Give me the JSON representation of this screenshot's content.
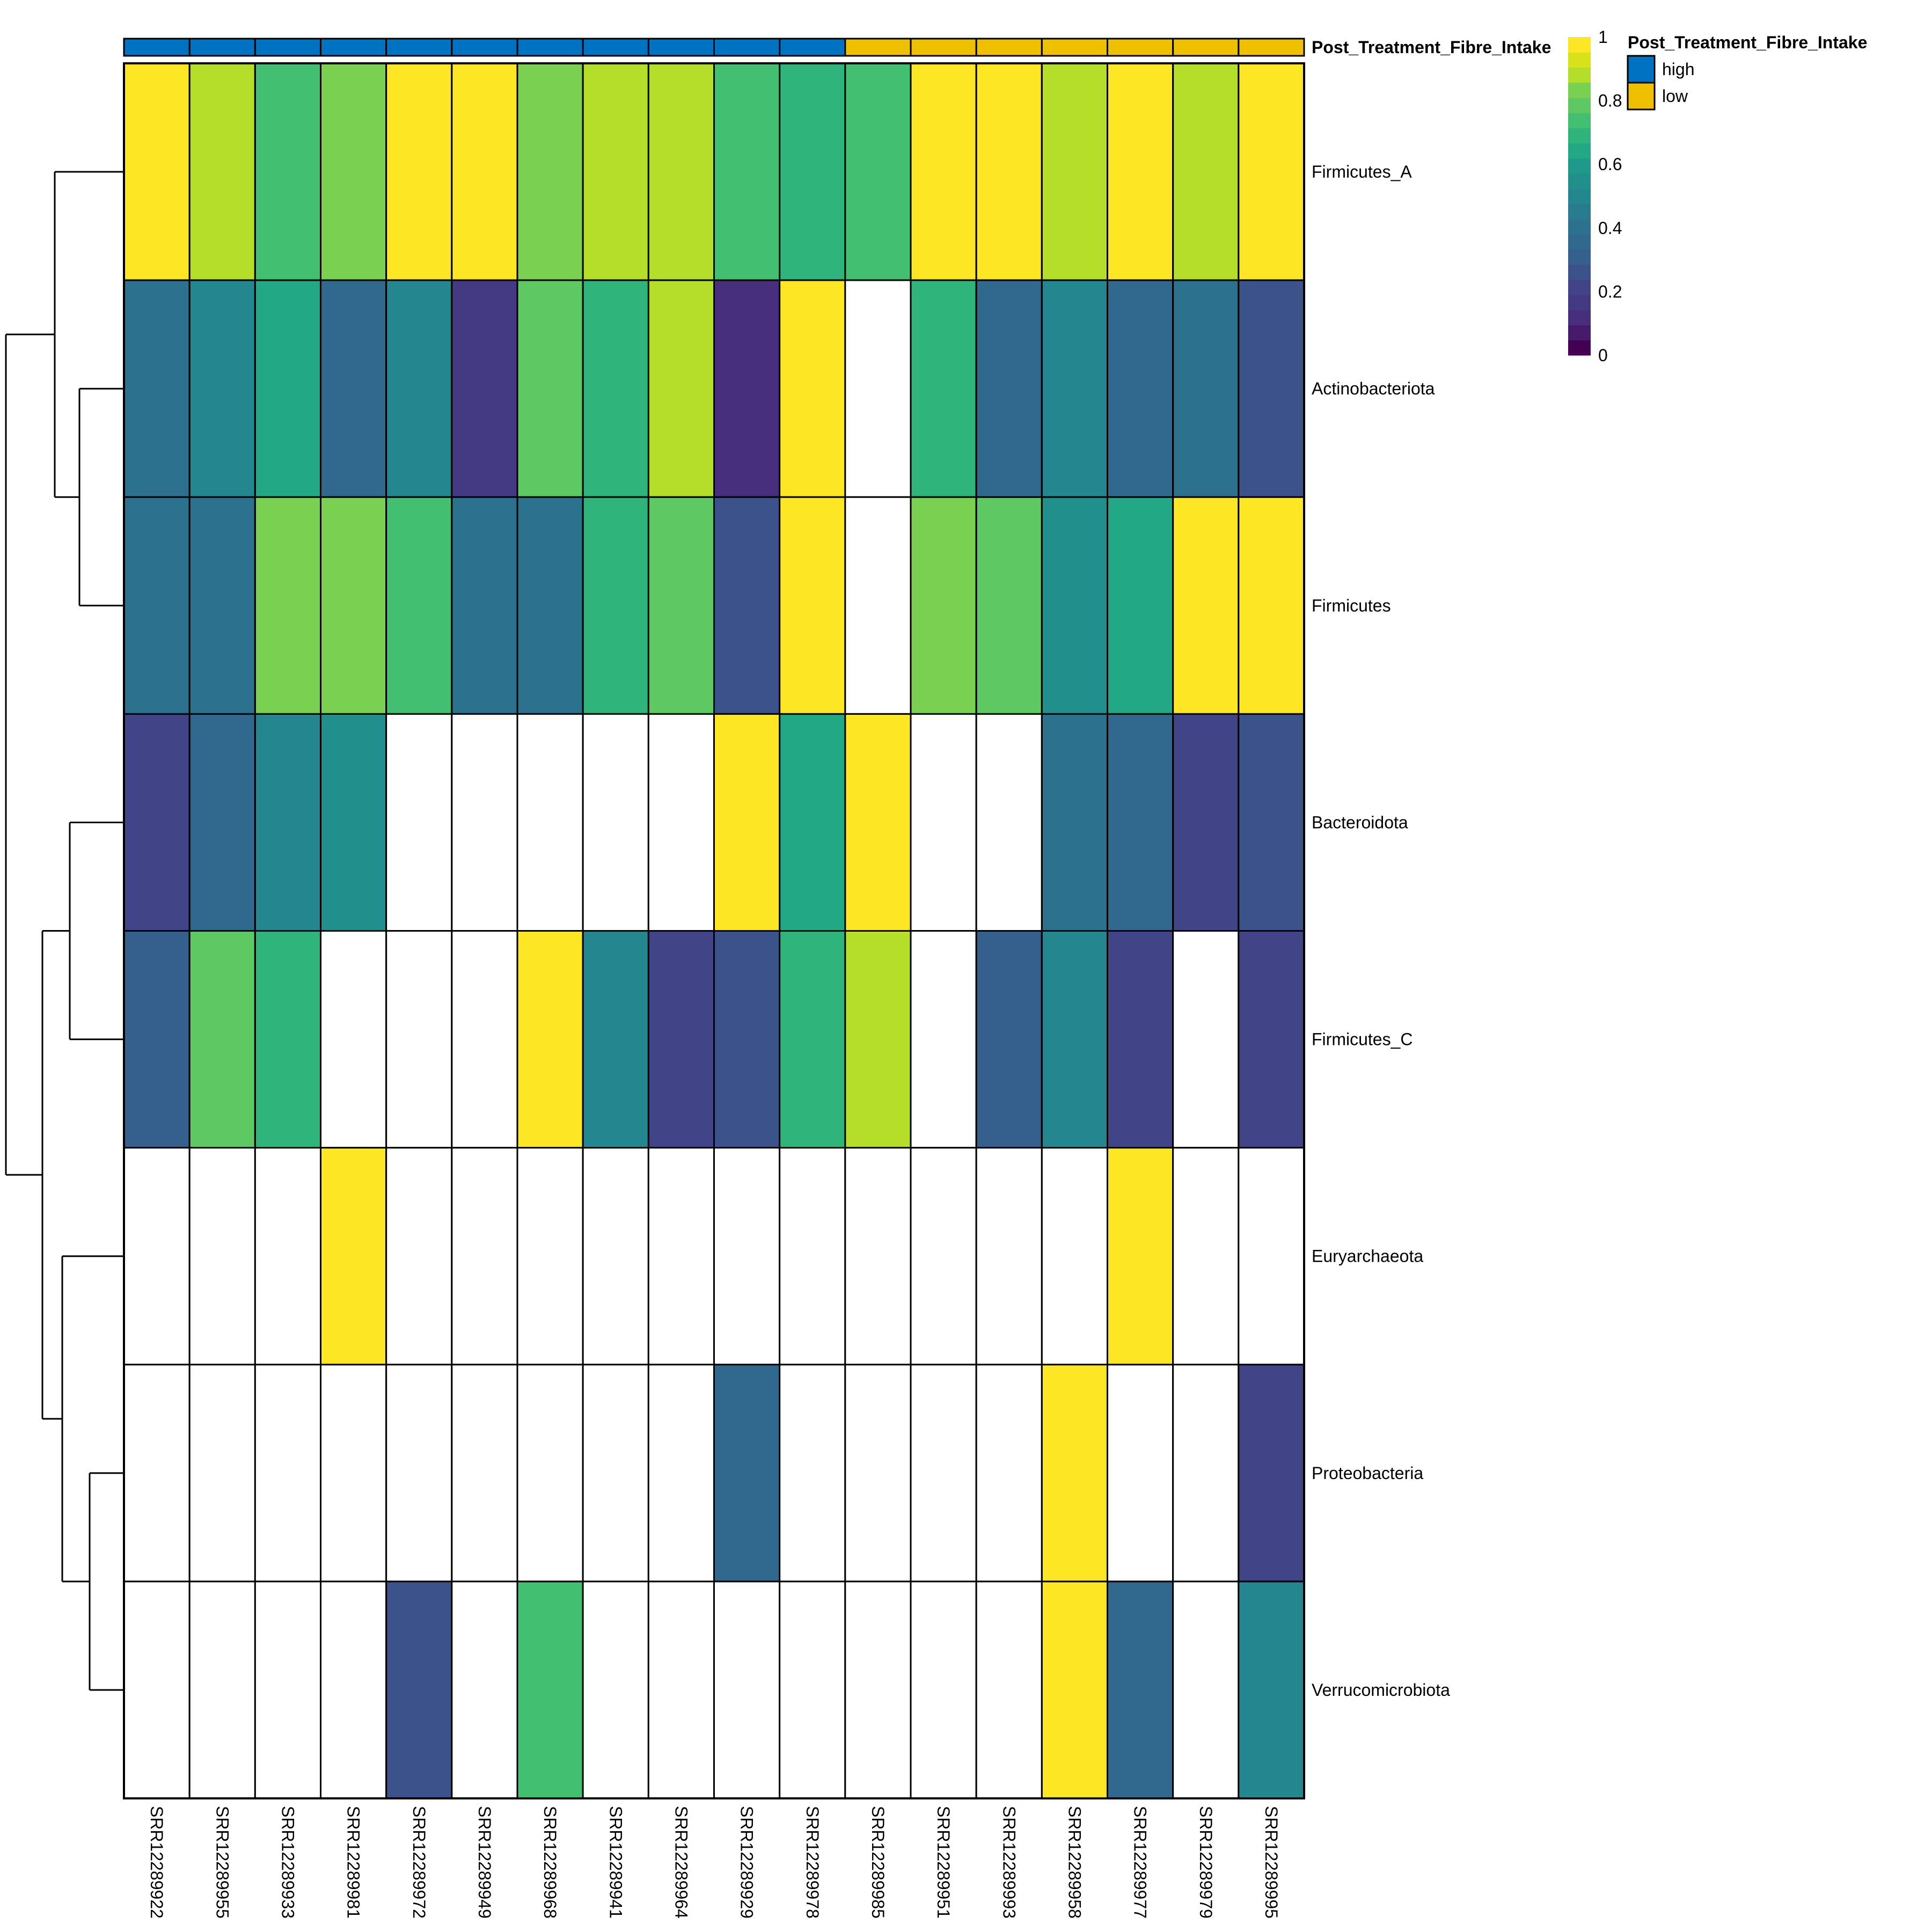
{
  "chart_data": {
    "type": "heatmap",
    "title": "",
    "rows": [
      "Firmicutes_A",
      "Actinobacteriota",
      "Firmicutes",
      "Bacteroidota",
      "Firmicutes_C",
      "Euryarchaeota",
      "Proteobacteria",
      "Verrucomicrobiota"
    ],
    "columns": [
      "SRR12289922",
      "SRR12289955",
      "SRR12289933",
      "SRR12289981",
      "SRR12289972",
      "SRR12289949",
      "SRR12289968",
      "SRR12289941",
      "SRR12289964",
      "SRR12289929",
      "SRR12289978",
      "SRR12289985",
      "SRR12289951",
      "SRR12289993",
      "SRR12289958",
      "SRR12289977",
      "SRR12289979",
      "SRR12289995"
    ],
    "values": [
      [
        1.0,
        0.92,
        0.77,
        0.87,
        1.0,
        1.0,
        0.87,
        0.92,
        0.92,
        0.77,
        0.72,
        0.77,
        1.0,
        1.0,
        0.92,
        1.0,
        0.92,
        1.0
      ],
      [
        0.42,
        0.5,
        0.67,
        0.37,
        0.5,
        0.17,
        0.82,
        0.72,
        0.92,
        0.12,
        1.0,
        null,
        0.72,
        0.37,
        0.5,
        0.37,
        0.42,
        0.27
      ],
      [
        0.42,
        0.42,
        0.87,
        0.87,
        0.77,
        0.42,
        0.42,
        0.72,
        0.82,
        0.27,
        1.0,
        null,
        0.87,
        0.82,
        0.57,
        0.67,
        1.0,
        1.0
      ],
      [
        0.22,
        0.37,
        0.5,
        0.57,
        null,
        null,
        null,
        null,
        null,
        1.0,
        0.67,
        1.0,
        null,
        null,
        0.42,
        0.37,
        0.22,
        0.27
      ],
      [
        0.32,
        0.82,
        0.72,
        null,
        null,
        null,
        1.0,
        0.5,
        0.22,
        0.27,
        0.72,
        0.92,
        null,
        0.32,
        0.5,
        0.22,
        null,
        0.22
      ],
      [
        null,
        null,
        null,
        1.0,
        null,
        null,
        null,
        null,
        null,
        null,
        null,
        null,
        null,
        null,
        null,
        1.0,
        null,
        null
      ],
      [
        null,
        null,
        null,
        null,
        null,
        null,
        null,
        null,
        null,
        0.37,
        null,
        null,
        null,
        null,
        1.0,
        null,
        null,
        0.22
      ],
      [
        null,
        null,
        null,
        null,
        0.27,
        null,
        0.77,
        null,
        null,
        null,
        null,
        null,
        null,
        null,
        1.0,
        0.37,
        null,
        0.5
      ]
    ],
    "missing_color": "#ffffff",
    "colorscale": {
      "name": "viridis",
      "range": [
        0,
        1
      ],
      "ticks": [
        "0",
        "0.2",
        "0.4",
        "0.6",
        "0.8",
        "1"
      ],
      "tick_values": [
        0,
        0.2,
        0.4,
        0.6,
        0.8,
        1
      ],
      "steps": [
        "#440154",
        "#481A6C",
        "#472F7D",
        "#443A83",
        "#414487",
        "#3B528B",
        "#35608D",
        "#31688E",
        "#2C728E",
        "#287C8E",
        "#24868E",
        "#21908C",
        "#1F9A8A",
        "#22A884",
        "#2FB47C",
        "#43BF71",
        "#5EC962",
        "#7AD151",
        "#B5DE2B",
        "#D8E219",
        "#FDE725"
      ]
    },
    "column_annotation": {
      "name": "Post_Treatment_Fibre_Intake",
      "values": [
        "high",
        "high",
        "high",
        "high",
        "high",
        "high",
        "high",
        "high",
        "high",
        "high",
        "high",
        "low",
        "low",
        "low",
        "low",
        "low",
        "low",
        "low"
      ],
      "legend": [
        {
          "label": "high",
          "color": "#0072C2"
        },
        {
          "label": "low",
          "color": "#EFC000"
        }
      ]
    },
    "row_dendrogram": {
      "merges": [
        {
          "left": "Actinobacteriota",
          "right": "Firmicutes",
          "height": 0.55
        },
        {
          "left": "Firmicutes_A",
          "right": "Actinobacteriota+Firmicutes",
          "height": 0.85
        },
        {
          "left": "Bacteroidota",
          "right": "Firmicutes_C",
          "height": 0.7
        },
        {
          "left": "Proteobacteria",
          "right": "Verrucomicrobiota",
          "height": 0.5
        },
        {
          "left": "Euryarchaeota",
          "right": "Proteobacteria+Verrucomicrobiota",
          "height": 0.75
        },
        {
          "left": "Bacteroidota+Firmicutes_C",
          "right": "Euryarchaeota+Proteobacteria+Verrucomicrobiota",
          "height": 0.88
        },
        {
          "left": "upper",
          "right": "lower",
          "height": 1.0
        }
      ]
    }
  }
}
